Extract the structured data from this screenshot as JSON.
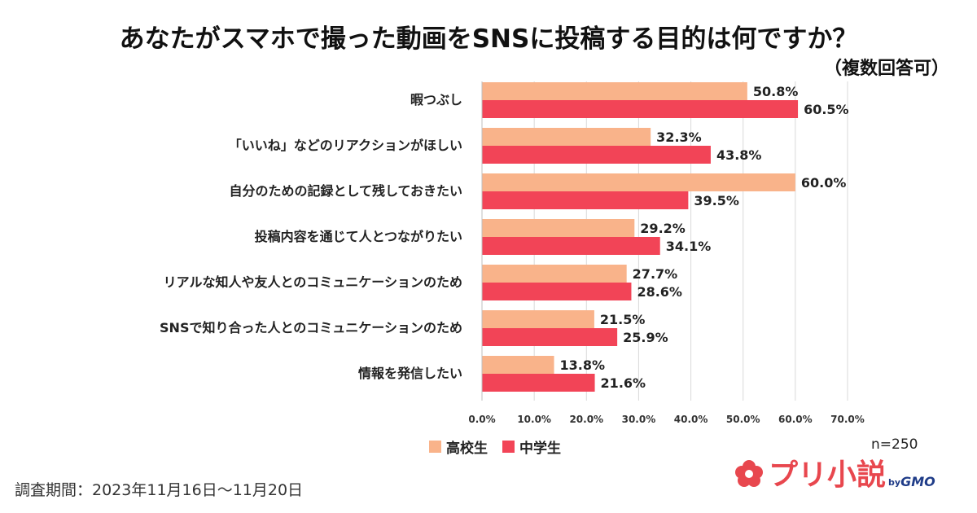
{
  "header": {
    "title": "あなたがスマホで撮った動画をSNSに投稿する目的は何ですか？",
    "subtitle": "（複数回答可）"
  },
  "chart_data": {
    "type": "bar",
    "orientation": "horizontal",
    "title": "あなたがスマホで撮った動画をSNSに投稿する目的は何ですか？",
    "categories": [
      "暇つぶし",
      "「いいね」などのリアクションがほしい",
      "自分のための記録として残しておきたい",
      "投稿内容を通じて人とつながりたい",
      "リアルな知人や友人とのコミュニケーションのため",
      "SNSで知り合った人とのコミュニケーションのため",
      "情報を発信したい"
    ],
    "series": [
      {
        "name": "高校生",
        "color": "#f9b38a",
        "values": [
          50.8,
          32.3,
          60.0,
          29.2,
          27.7,
          21.5,
          13.8
        ],
        "labels": [
          "50.8%",
          "32.3%",
          "60.0%",
          "29.2%",
          "27.7%",
          "21.5%",
          "13.8%"
        ]
      },
      {
        "name": "中学生",
        "color": "#f24457",
        "values": [
          60.5,
          43.8,
          39.5,
          34.1,
          28.6,
          25.9,
          21.6
        ],
        "labels": [
          "60.5%",
          "43.8%",
          "39.5%",
          "34.1%",
          "28.6%",
          "25.9%",
          "21.6%"
        ]
      }
    ],
    "xlim": [
      0,
      70
    ],
    "xticks": [
      0,
      10,
      20,
      30,
      40,
      50,
      60,
      70
    ],
    "xtick_labels": [
      "0.0%",
      "10.0%",
      "20.0%",
      "30.0%",
      "40.0%",
      "50.0%",
      "60.0%",
      "70.0%"
    ],
    "gridlines": true,
    "legend_position": "bottom"
  },
  "legend": {
    "high_school": "高校生",
    "middle_school": "中学生"
  },
  "sample_size": "n=250",
  "survey_period": "調査期間：2023年11月16日〜11月20日",
  "logo": {
    "name": "プリ小説",
    "by": "by",
    "company": "GMO"
  }
}
